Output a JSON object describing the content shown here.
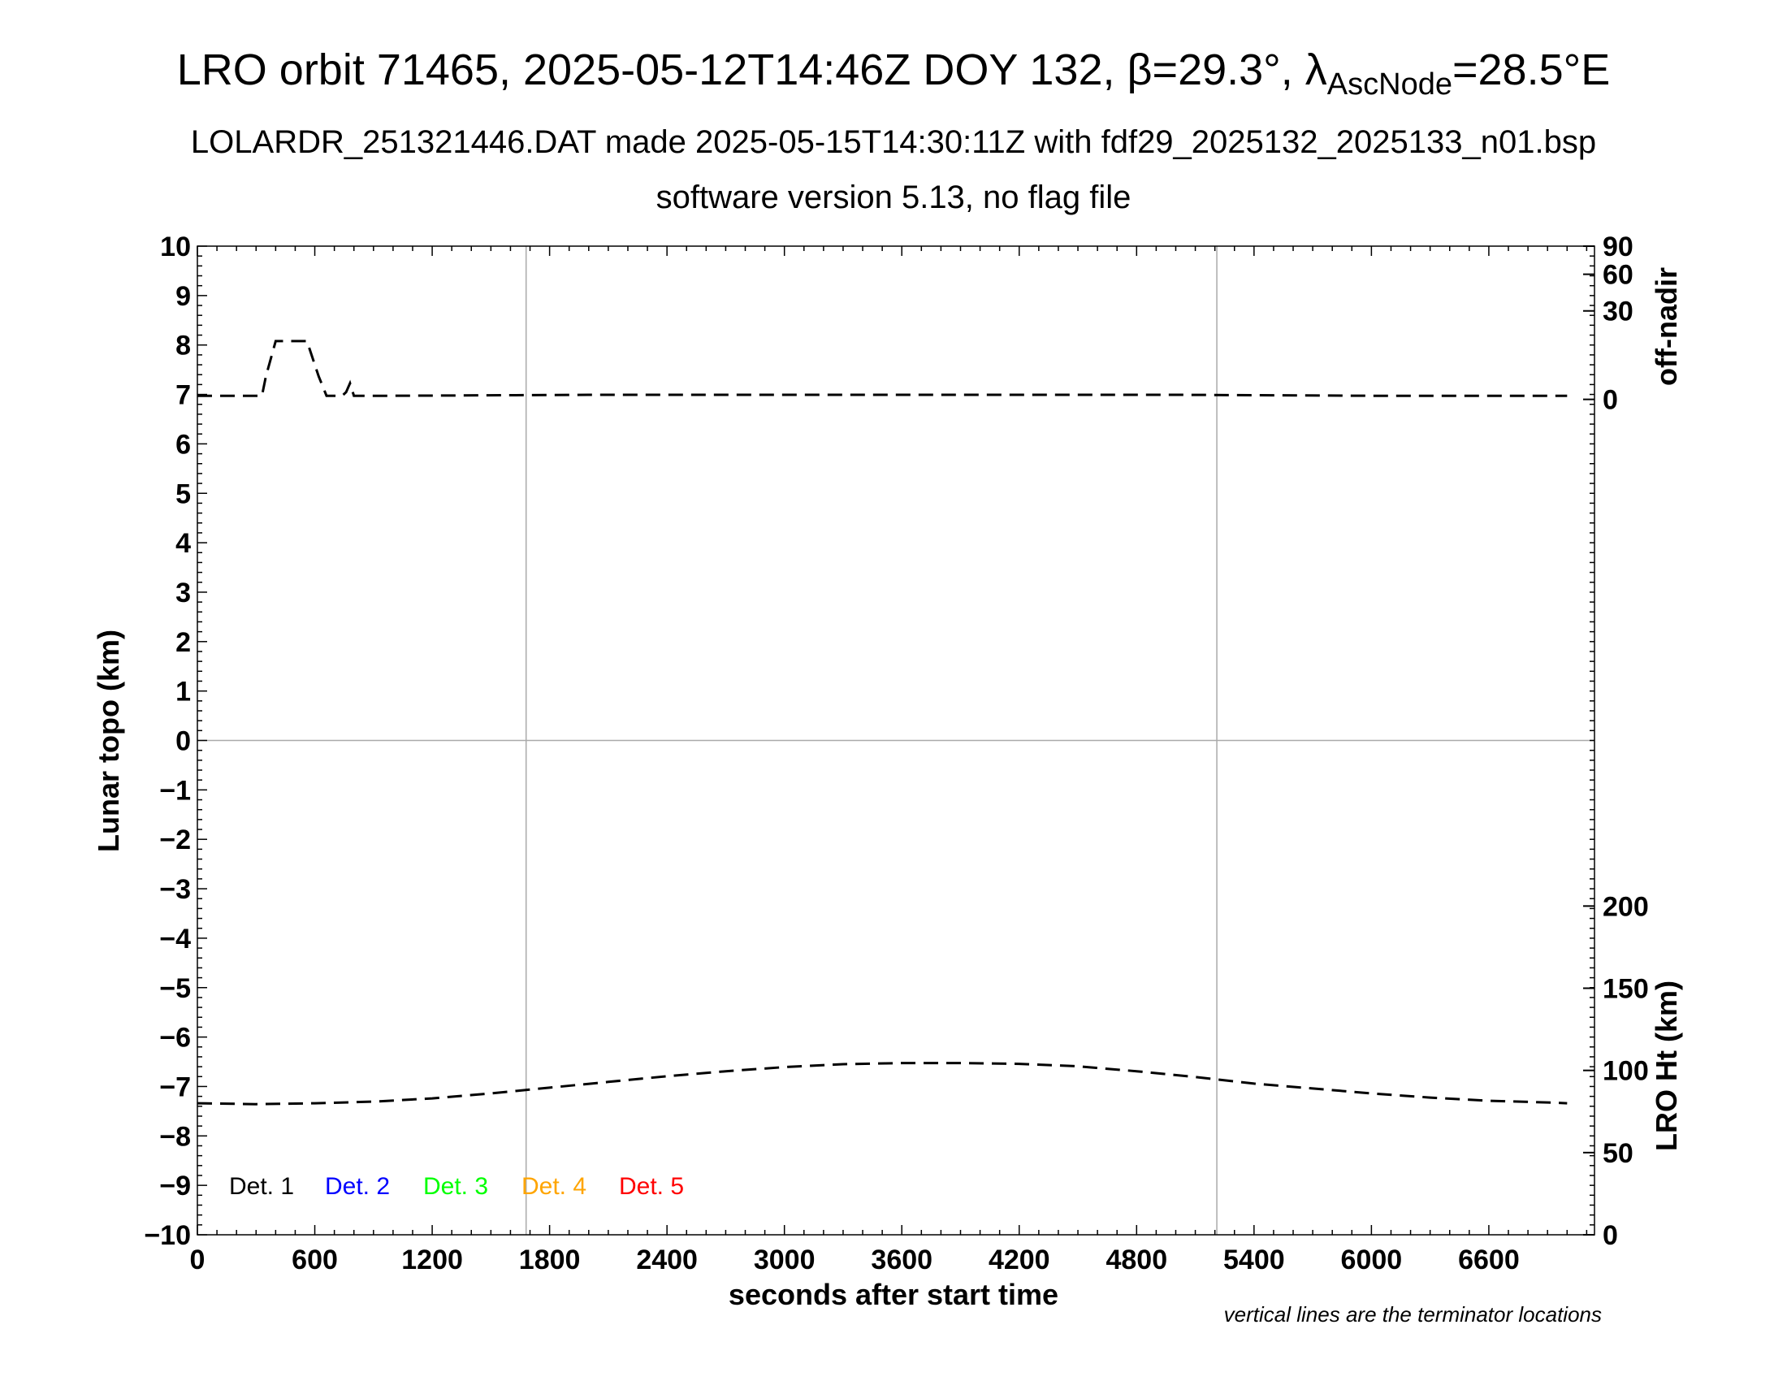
{
  "title": {
    "prefix": "LRO orbit 71465, 2025-05-12T14:46Z DOY 132, ",
    "beta": "β=29.3°, ",
    "lambda": "λ",
    "lambda_sub": "AscNode",
    "lambda_value": "=28.5°E"
  },
  "subtitle1": "LOLARDR_251321446.DAT made 2025-05-15T14:30:11Z with fdf29_2025132_2025133_n01.bsp",
  "subtitle2": "software version 5.13, no flag file",
  "note": "vertical lines are the terminator locations",
  "colors": {
    "det1": "#000000",
    "det2": "#0000ff",
    "det3": "#00ff00",
    "det4": "#ffa500",
    "det5": "#ff0000",
    "gridline": "#aaaaaa"
  },
  "chart_data": {
    "type": "line",
    "xlabel": "seconds after start time",
    "ylabel_left": "Lunar topo (km)",
    "ylabel_right_top": "off-nadir",
    "ylabel_right_bottom": "LRO Ht (km)",
    "xlim": [
      0,
      7140
    ],
    "ylim_left": [
      -10,
      10
    ],
    "x_ticks": [
      "0",
      "600",
      "1200",
      "1800",
      "2400",
      "3000",
      "3600",
      "4200",
      "4800",
      "5400",
      "6000",
      "6600"
    ],
    "x_tick_values": [
      0,
      600,
      1200,
      1800,
      2400,
      3000,
      3600,
      4200,
      4800,
      5400,
      6000,
      6600
    ],
    "y_ticks_left": [
      "10",
      "9",
      "8",
      "7",
      "6",
      "5",
      "4",
      "3",
      "2",
      "1",
      "0",
      "−1",
      "−2",
      "−3",
      "−4",
      "−5",
      "−6",
      "−7",
      "−8",
      "−9",
      "−10"
    ],
    "y_tick_values_left": [
      10,
      9,
      8,
      7,
      6,
      5,
      4,
      3,
      2,
      1,
      0,
      -1,
      -2,
      -3,
      -4,
      -5,
      -6,
      -7,
      -8,
      -9,
      -10
    ],
    "off_nadir_ticks": [
      "90",
      "60",
      "30",
      "0"
    ],
    "off_nadir_tick_values": [
      90,
      60,
      30,
      0
    ],
    "off_nadir_scale": "sqrt",
    "lro_ht_ticks": [
      "200",
      "150",
      "100",
      "50",
      "0"
    ],
    "lro_ht_tick_values": [
      200,
      150,
      100,
      50,
      0
    ],
    "lro_ht_range": [
      0,
      200
    ],
    "terminators": [
      1680,
      5210
    ],
    "grid": "terminators and zero line",
    "legend": [
      "Det. 1",
      "Det. 2",
      "Det. 3",
      "Det. 4",
      "Det. 5"
    ],
    "legend_placement": "bottom-left",
    "series": [
      {
        "axis": "off-nadir",
        "style": "dashed",
        "x": [
          0,
          330,
          350,
          400,
          560,
          620,
          660,
          700,
          740,
          760,
          780,
          800,
          1000,
          2000,
          3000,
          4000,
          5000,
          6000,
          7000
        ],
        "values": [
          0.05,
          0.05,
          2,
          13,
          13,
          2,
          0.05,
          0.05,
          0.05,
          0.2,
          1.0,
          0.05,
          0.05,
          0.08,
          0.08,
          0.08,
          0.08,
          0.05,
          0.05
        ]
      },
      {
        "axis": "LRO Ht",
        "style": "dashed",
        "x": [
          0,
          300,
          600,
          900,
          1200,
          1500,
          1800,
          2100,
          2400,
          2700,
          3000,
          3300,
          3600,
          3900,
          4200,
          4500,
          4800,
          5100,
          5400,
          5700,
          6000,
          6300,
          6600,
          6900,
          7000
        ],
        "values": [
          80,
          79.5,
          80,
          81,
          83,
          86,
          89.5,
          93,
          96.5,
          99.5,
          102,
          103.8,
          104.5,
          104.5,
          104,
          102.5,
          99.5,
          96,
          92,
          89,
          86,
          83.5,
          81.5,
          80.5,
          80
        ]
      }
    ]
  }
}
